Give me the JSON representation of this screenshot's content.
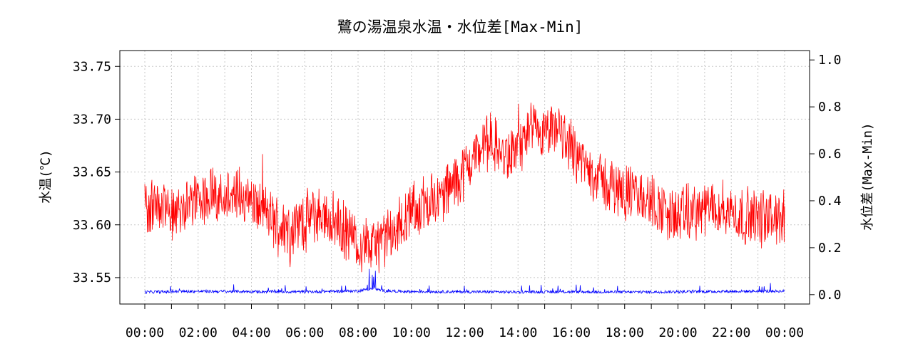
{
  "chart_data": {
    "type": "line",
    "title": "鷺の湯温泉水温・水位差[Max-Min]",
    "xlabel": "",
    "ylabel": "水温(℃)",
    "y2label": "水位差(Max-Min)",
    "x_ticks": [
      "00:00",
      "02:00",
      "04:00",
      "06:00",
      "08:00",
      "10:00",
      "12:00",
      "14:00",
      "16:00",
      "18:00",
      "20:00",
      "22:00",
      "00:00"
    ],
    "xlim_hours": [
      0,
      24
    ],
    "y_ticks": [
      "33.75",
      "33.70",
      "33.65",
      "33.60",
      "33.55"
    ],
    "ylim": [
      33.525,
      33.765
    ],
    "y2_ticks": [
      "1.0",
      "0.8",
      "0.6",
      "0.4",
      "0.2",
      "0.0"
    ],
    "y2lim": [
      -0.04,
      1.04
    ],
    "grid": true,
    "series": [
      {
        "axis": "left",
        "color": "#ff0000",
        "x_hours": [
          0,
          0.5,
          1,
          1.5,
          2,
          2.5,
          3,
          3.5,
          4,
          4.5,
          5,
          5.5,
          6,
          6.5,
          7,
          7.5,
          8,
          8.5,
          9,
          9.5,
          10,
          10.5,
          11,
          11.5,
          12,
          12.5,
          13,
          13.5,
          14,
          14.5,
          15,
          15.5,
          16,
          16.5,
          17,
          17.5,
          18,
          18.5,
          19,
          19.5,
          20,
          20.5,
          21,
          21.5,
          22,
          22.5,
          23,
          23.5,
          24
        ],
        "values": [
          33.615,
          33.62,
          33.612,
          33.617,
          33.624,
          33.628,
          33.632,
          33.627,
          33.621,
          33.612,
          33.6,
          33.596,
          33.605,
          33.61,
          33.605,
          33.594,
          33.584,
          33.579,
          33.585,
          33.597,
          33.612,
          33.62,
          33.625,
          33.636,
          33.652,
          33.67,
          33.68,
          33.662,
          33.672,
          33.688,
          33.682,
          33.69,
          33.675,
          33.656,
          33.645,
          33.635,
          33.632,
          33.627,
          33.622,
          33.612,
          33.607,
          33.612,
          33.614,
          33.617,
          33.612,
          33.608,
          33.606,
          33.606,
          33.607
        ]
      },
      {
        "axis": "right",
        "color": "#0000ff",
        "x_hours": [
          0,
          2,
          4,
          6,
          8,
          8.5,
          9,
          10,
          12,
          14,
          16,
          18,
          20,
          22,
          24
        ],
        "values": [
          0.005,
          0.008,
          0.007,
          0.006,
          0.01,
          0.02,
          0.01,
          0.007,
          0.006,
          0.005,
          0.006,
          0.005,
          0.006,
          0.008,
          0.009
        ]
      }
    ]
  }
}
